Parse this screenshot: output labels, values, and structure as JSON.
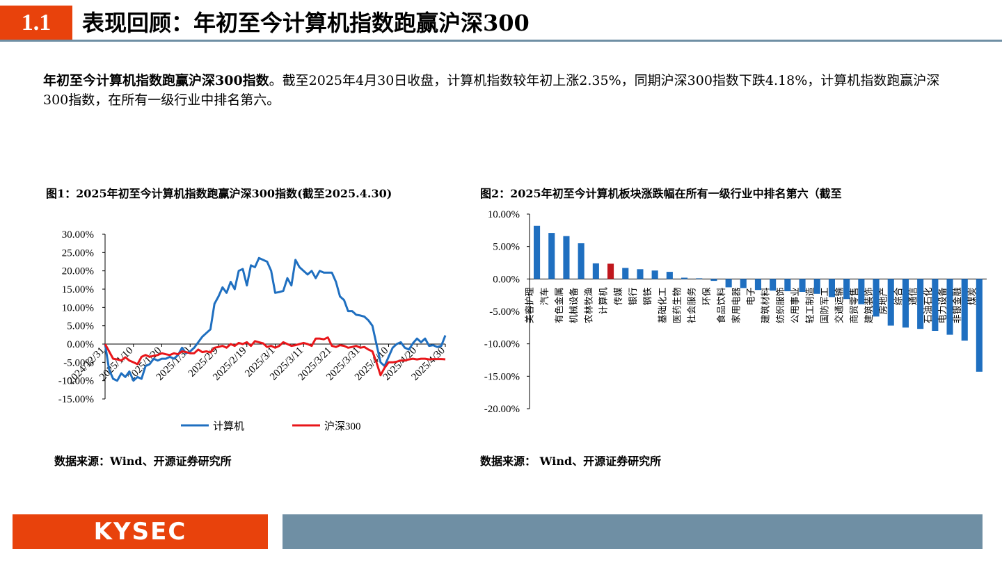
{
  "header": {
    "section_number": "1.1",
    "title": "表现回顾：年初至今计算机指数跑赢沪深300"
  },
  "intro": {
    "bold": "年初至今计算机指数跑赢沪深300指数",
    "text": "。截至2025年4月30日收盘，计算机指数较年初上涨2.35%，同期沪深300指数下跌4.18%，计算机指数跑赢沪深300指数，在所有一级行业中排名第六。"
  },
  "figure1": {
    "title": "图1：2025年初至今计算机指数跑赢沪深300指数(截至2025.4.30)",
    "source": "数据来源：Wind、开源证券研究所"
  },
  "figure2": {
    "title": "图2：2025年初至今计算机板块涨跌幅在所有一级行业中排名第六（截至",
    "source": "数据来源： Wind、开源证券研究所"
  },
  "chart_data": [
    {
      "type": "line",
      "ylim": [
        -15,
        30
      ],
      "yticks": [
        "30.00%",
        "25.00%",
        "20.00%",
        "15.00%",
        "10.00%",
        "5.00%",
        "0.00%",
        "-5.00%",
        "-10.00%",
        "-15.00%"
      ],
      "x_ticks": [
        "2024/12/31",
        "2025/1/10",
        "2025/1/20",
        "2025/1/30",
        "2025/2/9",
        "2025/2/19",
        "2025/3/1",
        "2025/3/11",
        "2025/3/21",
        "2025/3/31",
        "2025/4/10",
        "2025/4/20",
        "2025/4/30"
      ],
      "legend_position": "bottom",
      "series": [
        {
          "name": "计算机",
          "color": "#1f6fc0",
          "values": [
            0,
            -7,
            -9.5,
            -10,
            -8,
            -9,
            -7.5,
            -10,
            -9,
            -9.5,
            -6,
            -5.5,
            -4,
            -4.5,
            -4,
            -4,
            -3.5,
            -4,
            -3,
            -1,
            -2.5,
            -2,
            -1,
            0.5,
            2,
            3,
            4,
            11,
            13,
            15.5,
            14,
            17,
            15,
            20,
            20.5,
            16,
            21.5,
            21,
            23.5,
            23,
            22.5,
            20,
            14,
            14.2,
            14.5,
            18,
            16,
            23,
            21,
            20,
            19,
            20,
            18,
            20,
            19.5,
            19.5,
            19.5,
            17,
            13,
            12,
            9,
            9,
            8,
            7.8,
            7.5,
            6.5,
            5,
            0,
            -5,
            -6,
            -3.5,
            -1,
            0,
            0.5,
            -1,
            -1.5,
            0.2,
            1.5,
            0.5,
            1.5,
            -0.5,
            -0.3,
            -0.8,
            -0.5,
            2.35
          ]
        },
        {
          "name": "沪深300",
          "color": "#e8161a",
          "values": [
            0,
            -2,
            -4,
            -4.2,
            -4.5,
            -3.6,
            -4.5,
            -5,
            -5.5,
            -3.5,
            -3,
            -3.5,
            -3.2,
            -3,
            -2.5,
            -2.8,
            -3,
            -2.5,
            -2.8,
            -2,
            -2.2,
            -2.5,
            -2.5,
            -1.5,
            -2.2,
            -2,
            -2.3,
            -1,
            -0.8,
            -0.5,
            -1,
            0,
            -0.5,
            0.3,
            0,
            0.5,
            -0.5,
            0.8,
            0.5,
            0.2,
            -0.8,
            -0.5,
            -1,
            -0.5,
            0.5,
            0,
            -0.5,
            -0.3,
            0,
            0.3,
            0,
            -0.5,
            1.5,
            1.5,
            1.3,
            1.8,
            -0.5,
            -0.8,
            -0.3,
            -0.5,
            -1,
            -0.8,
            -0.5,
            -1,
            -0.8,
            -1.5,
            -2,
            -5,
            -8.5,
            -6.5,
            -5,
            -5,
            -4.8,
            -4.5,
            -4.5,
            -4.2,
            -4,
            -4.2,
            -4,
            -4,
            -4.2,
            -4.1,
            -4.1,
            -4.1,
            -4.18
          ]
        }
      ]
    },
    {
      "type": "bar",
      "ylim": [
        -20,
        10
      ],
      "yticks": [
        "10.00%",
        "5.00%",
        "0.00%",
        "-5.00%",
        "-10.00%",
        "-15.00%",
        "-20.00%"
      ],
      "bar_color": "#1f6fc0",
      "highlight_color": "#c0171d",
      "highlight_category": "计算机",
      "categories": [
        "美容护理",
        "汽车",
        "有色金属",
        "机械设备",
        "农林牧渔",
        "计算机",
        "传媒",
        "银行",
        "钢铁",
        "基础化工",
        "医药生物",
        "社会服务",
        "环保",
        "食品饮料",
        "家用电器",
        "电子",
        "建筑材料",
        "纺织服饰",
        "公用事业",
        "轻工制造",
        "国防军工",
        "交通运输",
        "商贸零售",
        "建筑装饰",
        "房地产",
        "综合",
        "通信",
        "石油石化",
        "电力设备",
        "非银金融",
        "煤炭"
      ],
      "values": [
        8.2,
        7.1,
        6.6,
        5.5,
        2.4,
        2.35,
        1.7,
        1.5,
        1.3,
        1.1,
        0.2,
        0.1,
        -0.3,
        -1.3,
        -1.4,
        -1.7,
        -1.8,
        -1.9,
        -2.0,
        -2.3,
        -2.8,
        -3.1,
        -3.9,
        -5.8,
        -7.2,
        -7.5,
        -7.7,
        -8.0,
        -8.6,
        -9.5,
        -14.3
      ]
    }
  ],
  "footer": {
    "logo": "KYSEC"
  }
}
